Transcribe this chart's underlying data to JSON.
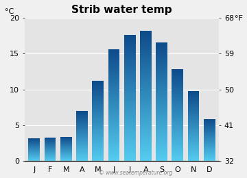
{
  "title": "Strib water temp",
  "months": [
    "J",
    "F",
    "M",
    "A",
    "M",
    "J",
    "J",
    "A",
    "S",
    "O",
    "N",
    "D"
  ],
  "values_c": [
    3.2,
    3.3,
    3.4,
    7.0,
    11.2,
    15.6,
    17.6,
    18.2,
    16.6,
    12.8,
    9.8,
    5.9
  ],
  "ylim_c": [
    0,
    20
  ],
  "yticks_c": [
    0,
    5,
    10,
    15,
    20
  ],
  "yticks_f": [
    32,
    41,
    50,
    59,
    68
  ],
  "ylabel_left": "°C",
  "ylabel_right": "°F",
  "bar_color_top": "#55ccf0",
  "bar_color_bottom": "#0d4a8a",
  "plot_bg_color": "#e4e4e4",
  "fig_bg_color": "#f0f0f0",
  "title_fontsize": 11,
  "axis_fontsize": 8,
  "tick_fontsize": 8,
  "watermark": "© www.seatemperature.org",
  "grid_color": "#ffffff",
  "bar_width": 0.72
}
